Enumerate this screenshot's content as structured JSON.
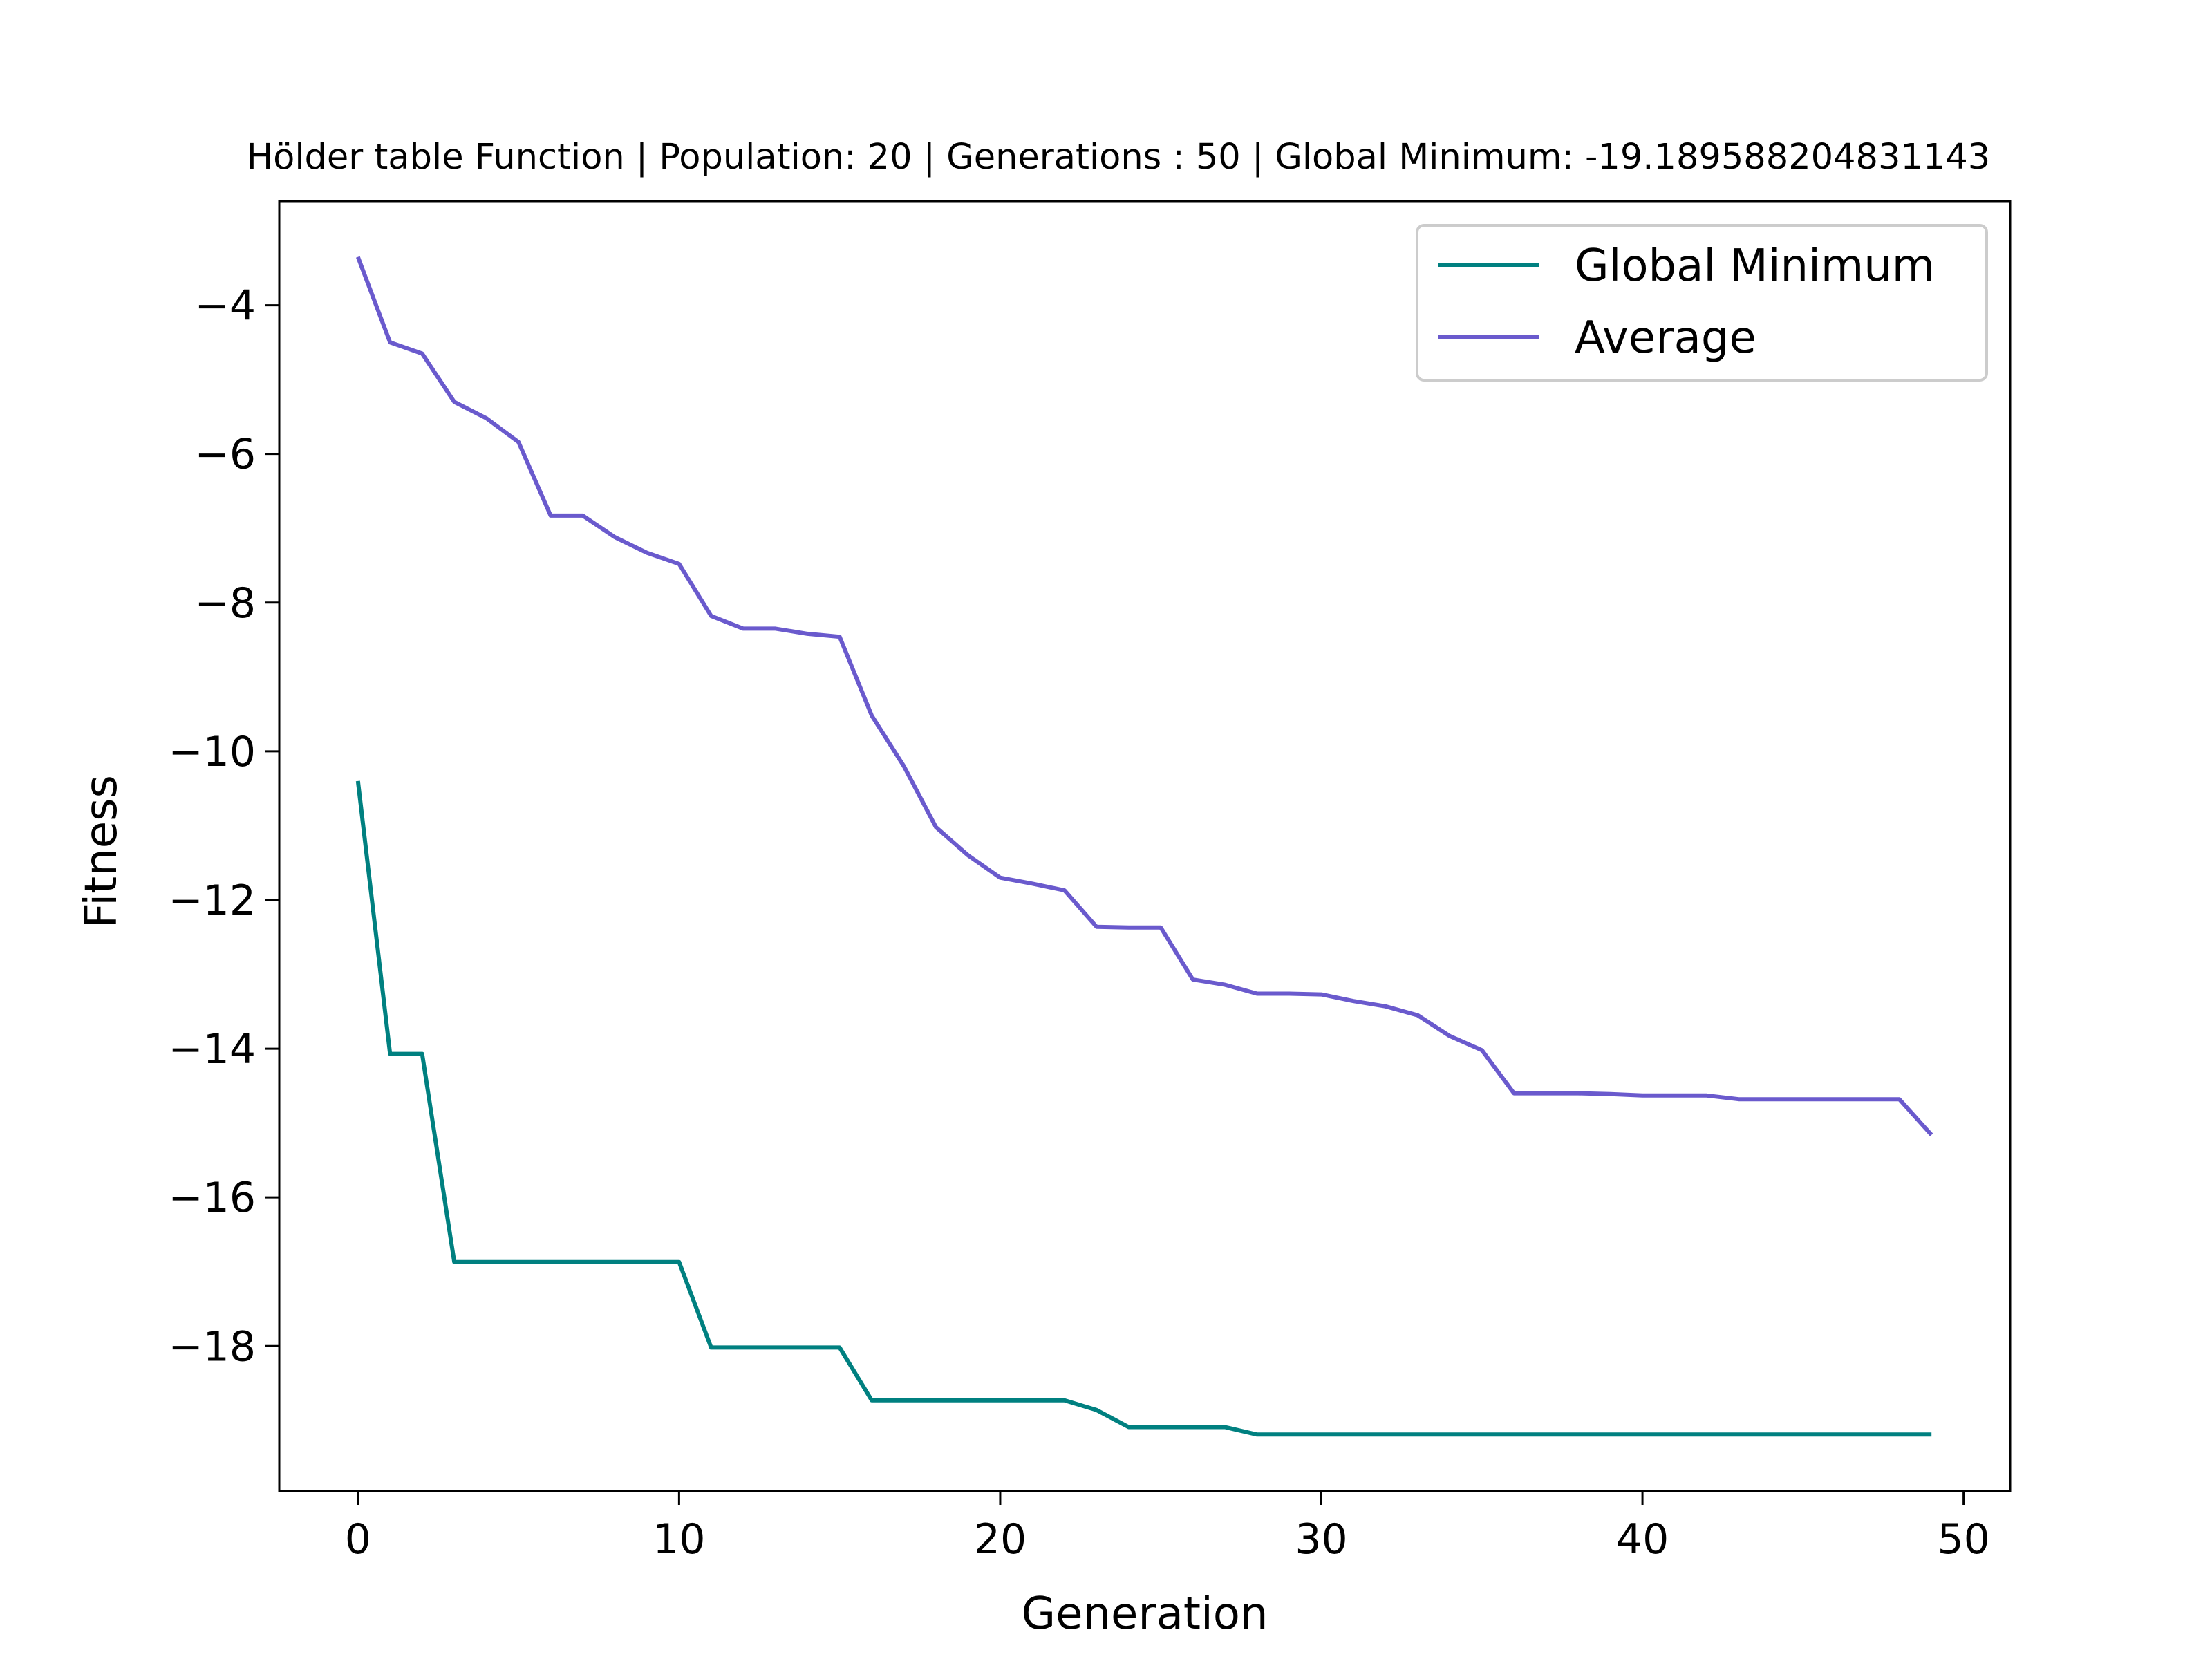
{
  "chart_data": {
    "type": "line",
    "title": "Hölder table Function | Population: 20 | Generations : 50 | Global Minimum: -19.189588204831143",
    "xlabel": "Generation",
    "ylabel": "Fitness",
    "xlim": [
      -2.45,
      51.45
    ],
    "ylim": [
      -19.95,
      -2.6
    ],
    "xticks": [
      0,
      10,
      20,
      30,
      40,
      50
    ],
    "yticks": [
      -4,
      -6,
      -8,
      -10,
      -12,
      -14,
      -16,
      -18
    ],
    "ytick_labels": [
      "−4",
      "−6",
      "−8",
      "−10",
      "−12",
      "−14",
      "−16",
      "−18"
    ],
    "grid": false,
    "legend_position": "top-right",
    "x": [
      0,
      1,
      2,
      3,
      4,
      5,
      6,
      7,
      8,
      9,
      10,
      11,
      12,
      13,
      14,
      15,
      16,
      17,
      18,
      19,
      20,
      21,
      22,
      23,
      24,
      25,
      26,
      27,
      28,
      29,
      30,
      31,
      32,
      33,
      34,
      35,
      36,
      37,
      38,
      39,
      40,
      41,
      42,
      43,
      44,
      45,
      46,
      47,
      48,
      49
    ],
    "series": [
      {
        "name": "Global Minimum",
        "color": "#008080",
        "values": [
          -10.4,
          -14.07,
          -14.07,
          -16.87,
          -16.87,
          -16.87,
          -16.87,
          -16.87,
          -16.87,
          -16.87,
          -16.87,
          -18.02,
          -18.02,
          -18.02,
          -18.02,
          -18.02,
          -18.73,
          -18.73,
          -18.73,
          -18.73,
          -18.73,
          -18.73,
          -18.73,
          -18.86,
          -19.09,
          -19.09,
          -19.09,
          -19.09,
          -19.19,
          -19.19,
          -19.19,
          -19.19,
          -19.19,
          -19.19,
          -19.19,
          -19.19,
          -19.19,
          -19.19,
          -19.19,
          -19.19,
          -19.19,
          -19.19,
          -19.19,
          -19.19,
          -19.19,
          -19.19,
          -19.19,
          -19.19,
          -19.19,
          -19.19
        ]
      },
      {
        "name": "Average",
        "color": "#6a5acd",
        "values": [
          -3.35,
          -4.5,
          -4.65,
          -5.3,
          -5.52,
          -5.84,
          -6.83,
          -6.83,
          -7.12,
          -7.33,
          -7.48,
          -8.18,
          -8.35,
          -8.35,
          -8.42,
          -8.46,
          -9.52,
          -10.2,
          -11.02,
          -11.4,
          -11.7,
          -11.78,
          -11.87,
          -12.36,
          -12.37,
          -12.37,
          -13.07,
          -13.14,
          -13.26,
          -13.26,
          -13.27,
          -13.36,
          -13.43,
          -13.55,
          -13.83,
          -14.02,
          -14.6,
          -14.6,
          -14.6,
          -14.61,
          -14.63,
          -14.63,
          -14.63,
          -14.68,
          -14.68,
          -14.68,
          -14.68,
          -14.68,
          -14.68,
          -15.16
        ]
      }
    ]
  }
}
